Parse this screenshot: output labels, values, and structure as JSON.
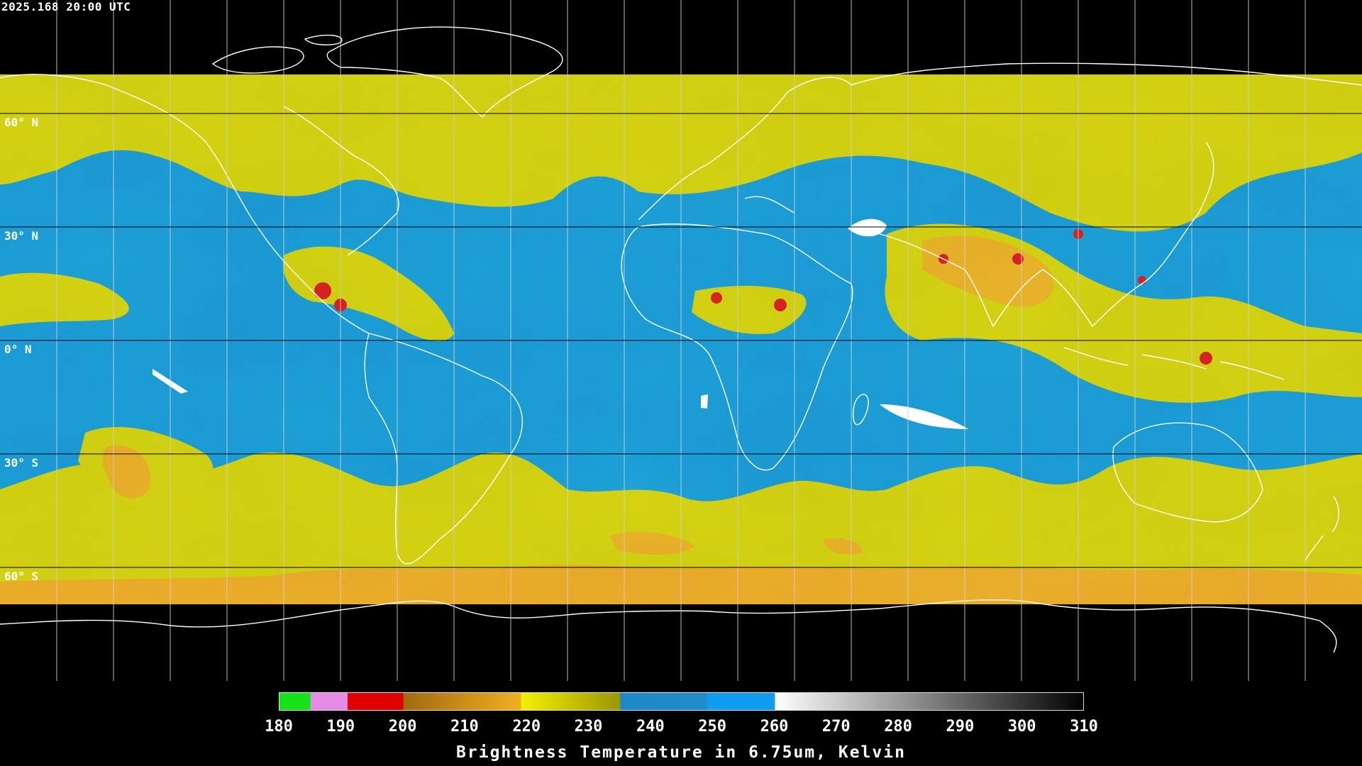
{
  "timestamp": "2025.168 20:00 UTC",
  "map": {
    "latitude_labels": [
      "60° N",
      "30° N",
      "0° N",
      "30° S",
      "60° S"
    ],
    "latitudes": [
      60,
      30,
      0,
      -30,
      -60
    ],
    "colors": {
      "background": "#000000",
      "moist": "#1a97d2",
      "dry_yellow": "#cfcd10",
      "orange": "#e9a42a",
      "red": "#d42020",
      "white": "#ffffff",
      "coastline": "#ffffff",
      "grid": "#000000"
    }
  },
  "colorbar": {
    "title": "Brightness Temperature in 6.75um, Kelvin",
    "min": 180,
    "max": 310,
    "ticks": [
      "180",
      "190",
      "200",
      "210",
      "220",
      "230",
      "240",
      "250",
      "260",
      "270",
      "280",
      "290",
      "300",
      "310"
    ],
    "tick_values": [
      180,
      190,
      200,
      210,
      220,
      230,
      240,
      250,
      260,
      270,
      280,
      290,
      300,
      310
    ],
    "segments": [
      {
        "from": 180,
        "to": 185,
        "color_start": "#16e016",
        "color_end": "#16e016"
      },
      {
        "from": 185,
        "to": 191,
        "color_start": "#e58be5",
        "color_end": "#e58be5"
      },
      {
        "from": 191,
        "to": 200,
        "color_start": "#e00000",
        "color_end": "#e00000"
      },
      {
        "from": 200,
        "to": 219,
        "color_start": "#a06a10",
        "color_end": "#f2b020"
      },
      {
        "from": 219,
        "to": 235,
        "color_start": "#f4f000",
        "color_end": "#9a9600"
      },
      {
        "from": 235,
        "to": 249,
        "color_start": "#1e88c8",
        "color_end": "#1e8ccc"
      },
      {
        "from": 249,
        "to": 260,
        "color_start": "#0f9cee",
        "color_end": "#0f9cee"
      },
      {
        "from": 260,
        "to": 310,
        "color_start": "#ffffff",
        "color_end": "#000000"
      }
    ]
  }
}
